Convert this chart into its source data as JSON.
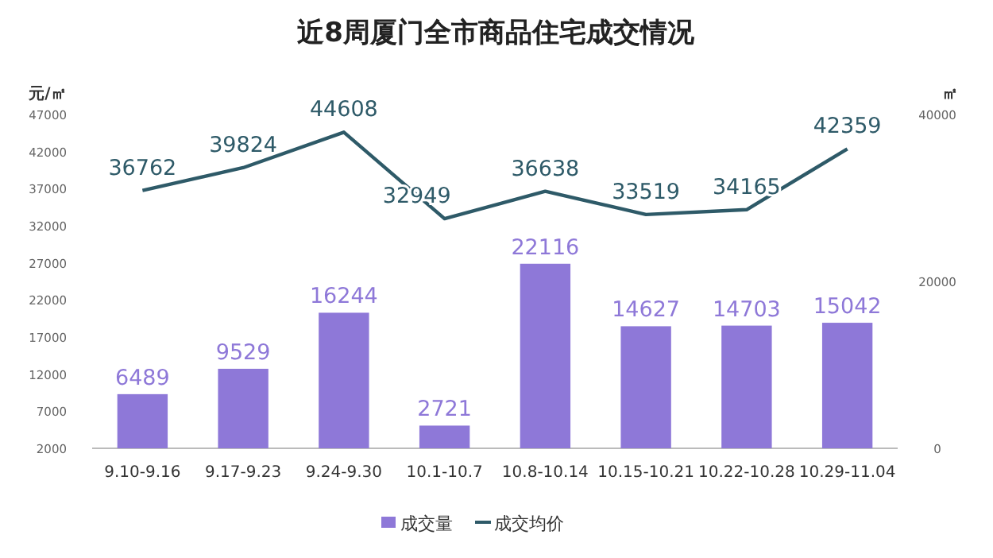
{
  "chart_data": {
    "type": "bar",
    "title": "近8周厦门全市商品住宅成交情况",
    "ylabel": "元/㎡",
    "y2label": "㎡",
    "categories": [
      "9.10-9.16",
      "9.17-9.23",
      "9.24-9.30",
      "10.1-10.7",
      "10.8-10.14",
      "10.15-10.21",
      "10.22-10.28",
      "10.29-11.04"
    ],
    "series": [
      {
        "name": "成交量",
        "axis": "y2",
        "color": "#8e78d8",
        "values": [
          6489,
          9529,
          16244,
          2721,
          22116,
          14627,
          14703,
          15042
        ]
      },
      {
        "name": "成交均价",
        "type": "line",
        "color": "#2e5a68",
        "values": [
          36762,
          39824,
          44608,
          32949,
          36638,
          33519,
          34165,
          42359
        ]
      }
    ],
    "ylim": [
      2000,
      47000
    ],
    "yticks": [
      2000,
      7000,
      12000,
      17000,
      22000,
      27000,
      32000,
      37000,
      42000,
      47000
    ],
    "y2lim": [
      0,
      40000
    ],
    "y2ticks": [
      0,
      20000,
      40000
    ],
    "data_labels": true,
    "legend": "bottom",
    "grid": false,
    "marker": "none",
    "line_style": "solid"
  }
}
